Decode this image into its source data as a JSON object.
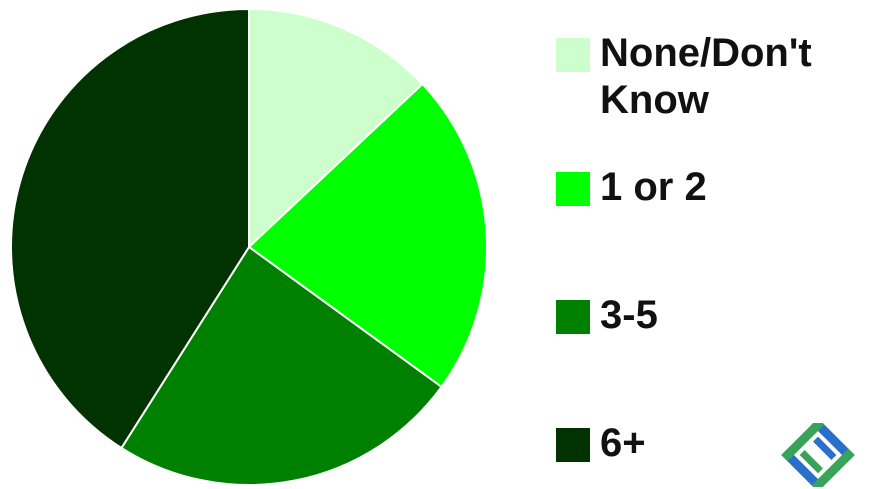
{
  "chart_data": {
    "type": "pie",
    "title": "",
    "slices": [
      {
        "label": "None/Don't Know",
        "value": 13,
        "color": "#ccffcc"
      },
      {
        "label": "1 or 2",
        "value": 22,
        "color": "#00ff00"
      },
      {
        "label": "3-5",
        "value": 24,
        "color": "#008000"
      },
      {
        "label": "6+",
        "value": 41,
        "color": "#003300"
      }
    ],
    "legend": "right"
  },
  "logo": {
    "icon": "woven-diamond-logo-icon",
    "colors": [
      "#2a6fc9",
      "#3aa35a"
    ]
  }
}
